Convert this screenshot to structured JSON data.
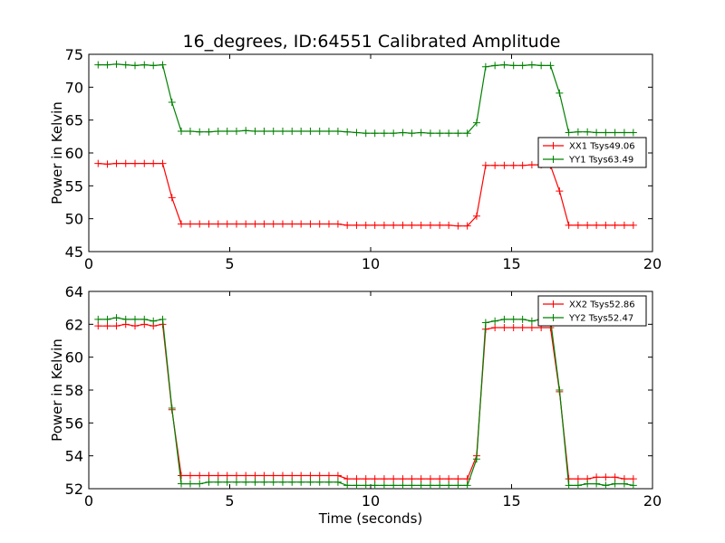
{
  "title": "16_degrees, ID:64551 Calibrated Amplitude",
  "chart_data": [
    {
      "type": "line",
      "ylabel": "Power in Kelvin",
      "xlabel": "",
      "xlim": [
        0,
        20
      ],
      "ylim": [
        45,
        75
      ],
      "xticks": [
        "0",
        "5",
        "10",
        "15",
        "20"
      ],
      "yticks": [
        "45",
        "50",
        "55",
        "60",
        "65",
        "70",
        "75"
      ],
      "legend_position": "center-right",
      "x": [
        0.33,
        0.66,
        0.98,
        1.31,
        1.64,
        1.97,
        2.29,
        2.62,
        2.95,
        3.28,
        3.6,
        3.93,
        4.26,
        4.59,
        4.91,
        5.24,
        5.57,
        5.9,
        6.22,
        6.55,
        6.88,
        7.21,
        7.53,
        7.86,
        8.19,
        8.52,
        8.84,
        9.17,
        9.5,
        9.83,
        10.15,
        10.48,
        10.81,
        11.14,
        11.46,
        11.79,
        12.12,
        12.45,
        12.77,
        13.1,
        13.43,
        13.76,
        14.08,
        14.41,
        14.74,
        15.07,
        15.39,
        15.72,
        16.05,
        16.38,
        16.7,
        17.03,
        17.36,
        17.69,
        18.01,
        18.34,
        18.67,
        19.0,
        19.32
      ],
      "series": [
        {
          "name": "XX1 Tsys49.06",
          "color": "#ff0000",
          "values": [
            58.4,
            58.3,
            58.4,
            58.4,
            58.4,
            58.4,
            58.4,
            58.4,
            53.2,
            49.2,
            49.2,
            49.2,
            49.2,
            49.2,
            49.2,
            49.2,
            49.2,
            49.2,
            49.2,
            49.2,
            49.2,
            49.2,
            49.2,
            49.2,
            49.2,
            49.2,
            49.2,
            49.0,
            49.0,
            49.0,
            49.0,
            49.0,
            49.0,
            49.0,
            49.0,
            49.0,
            49.0,
            49.0,
            49.0,
            48.9,
            48.9,
            50.4,
            58.1,
            58.1,
            58.1,
            58.1,
            58.1,
            58.2,
            58.2,
            58.1,
            54.2,
            49.0,
            49.0,
            49.0,
            49.0,
            49.0,
            49.0,
            49.0,
            49.0
          ]
        },
        {
          "name": "YY1 Tsys63.49",
          "color": "#008000",
          "values": [
            73.4,
            73.4,
            73.5,
            73.4,
            73.3,
            73.4,
            73.3,
            73.4,
            67.7,
            63.3,
            63.3,
            63.2,
            63.2,
            63.3,
            63.3,
            63.3,
            63.4,
            63.3,
            63.3,
            63.3,
            63.3,
            63.3,
            63.3,
            63.3,
            63.3,
            63.3,
            63.3,
            63.2,
            63.1,
            63.0,
            63.0,
            63.0,
            63.0,
            63.1,
            63.0,
            63.1,
            63.0,
            63.0,
            63.0,
            63.0,
            63.0,
            64.6,
            73.1,
            73.3,
            73.4,
            73.3,
            73.3,
            73.4,
            73.3,
            73.3,
            69.1,
            63.1,
            63.2,
            63.2,
            63.1,
            63.1,
            63.1,
            63.1,
            63.1
          ]
        }
      ]
    },
    {
      "type": "line",
      "ylabel": "Power in Kelvin",
      "xlabel": "Time (seconds)",
      "xlim": [
        0,
        20
      ],
      "ylim": [
        52,
        64
      ],
      "xticks": [
        "0",
        "5",
        "10",
        "15",
        "20"
      ],
      "yticks": [
        "52",
        "54",
        "56",
        "58",
        "60",
        "62",
        "64"
      ],
      "legend_position": "top-right",
      "x": [
        0.33,
        0.66,
        0.98,
        1.31,
        1.64,
        1.97,
        2.29,
        2.62,
        2.95,
        3.28,
        3.6,
        3.93,
        4.26,
        4.59,
        4.91,
        5.24,
        5.57,
        5.9,
        6.22,
        6.55,
        6.88,
        7.21,
        7.53,
        7.86,
        8.19,
        8.52,
        8.84,
        9.17,
        9.5,
        9.83,
        10.15,
        10.48,
        10.81,
        11.14,
        11.46,
        11.79,
        12.12,
        12.45,
        12.77,
        13.1,
        13.43,
        13.76,
        14.08,
        14.41,
        14.74,
        15.07,
        15.39,
        15.72,
        16.05,
        16.38,
        16.7,
        17.03,
        17.36,
        17.69,
        18.01,
        18.34,
        18.67,
        19.0,
        19.32
      ],
      "series": [
        {
          "name": "XX2 Tsys52.86",
          "color": "#ff0000",
          "values": [
            61.9,
            61.9,
            61.9,
            62.0,
            61.9,
            62.0,
            61.9,
            62.0,
            56.8,
            52.8,
            52.8,
            52.8,
            52.8,
            52.8,
            52.8,
            52.8,
            52.8,
            52.8,
            52.8,
            52.8,
            52.8,
            52.8,
            52.8,
            52.8,
            52.8,
            52.8,
            52.8,
            52.6,
            52.6,
            52.6,
            52.6,
            52.6,
            52.6,
            52.6,
            52.6,
            52.6,
            52.6,
            52.6,
            52.6,
            52.6,
            52.6,
            54.0,
            61.7,
            61.8,
            61.8,
            61.8,
            61.8,
            61.8,
            61.8,
            61.8,
            57.9,
            52.6,
            52.6,
            52.6,
            52.7,
            52.7,
            52.7,
            52.6,
            52.6
          ]
        },
        {
          "name": "YY2 Tsys52.47",
          "color": "#008000",
          "values": [
            62.3,
            62.3,
            62.4,
            62.3,
            62.3,
            62.3,
            62.2,
            62.3,
            56.9,
            52.3,
            52.3,
            52.3,
            52.4,
            52.4,
            52.4,
            52.4,
            52.4,
            52.4,
            52.4,
            52.4,
            52.4,
            52.4,
            52.4,
            52.4,
            52.4,
            52.4,
            52.4,
            52.2,
            52.2,
            52.2,
            52.2,
            52.2,
            52.2,
            52.2,
            52.2,
            52.2,
            52.2,
            52.2,
            52.2,
            52.2,
            52.2,
            53.8,
            62.1,
            62.2,
            62.3,
            62.3,
            62.3,
            62.2,
            62.3,
            62.3,
            58.0,
            52.2,
            52.2,
            52.3,
            52.3,
            52.2,
            52.3,
            52.3,
            52.2
          ]
        }
      ]
    }
  ]
}
